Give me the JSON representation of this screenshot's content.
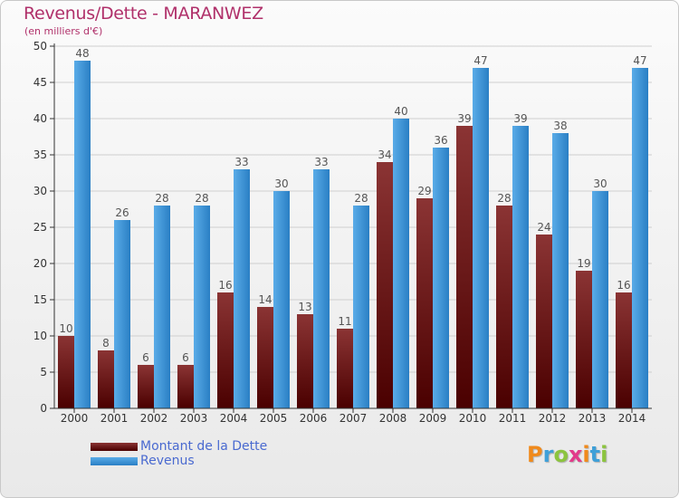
{
  "title": "Revenus/Dette - MARANWEZ",
  "subtitle": "(en milliers d'€)",
  "logo": {
    "text": "Proxiti",
    "colors": [
      "#f08a1c",
      "#3fa0d8",
      "#8cc43e",
      "#e23a8a",
      "#f08a1c",
      "#3fa0d8",
      "#8cc43e"
    ]
  },
  "colors": {
    "dette_top": "#8b3434",
    "dette_bottom": "#4a0000",
    "revenus_top": "#5aace8",
    "revenus_bottom": "#2a7fc4",
    "label": "#555555",
    "tick": "#333333",
    "grid": "#cfcfcf"
  },
  "chart_data": {
    "type": "bar",
    "categories": [
      "2000",
      "2001",
      "2002",
      "2003",
      "2004",
      "2005",
      "2006",
      "2007",
      "2008",
      "2009",
      "2010",
      "2011",
      "2012",
      "2013",
      "2014"
    ],
    "series": [
      {
        "name": "Montant de la Dette",
        "values": [
          10,
          8,
          6,
          6,
          16,
          14,
          13,
          11,
          34,
          29,
          39,
          28,
          24,
          19,
          16
        ]
      },
      {
        "name": "Revenus",
        "values": [
          48,
          26,
          28,
          28,
          33,
          30,
          33,
          28,
          40,
          36,
          47,
          39,
          38,
          30,
          47
        ]
      }
    ],
    "ylim": [
      0,
      50
    ],
    "yticks": [
      "0",
      "5",
      "10",
      "15",
      "20",
      "25",
      "30",
      "35",
      "40",
      "45",
      "50"
    ],
    "grid": true,
    "legend_position": "bottom-left"
  }
}
